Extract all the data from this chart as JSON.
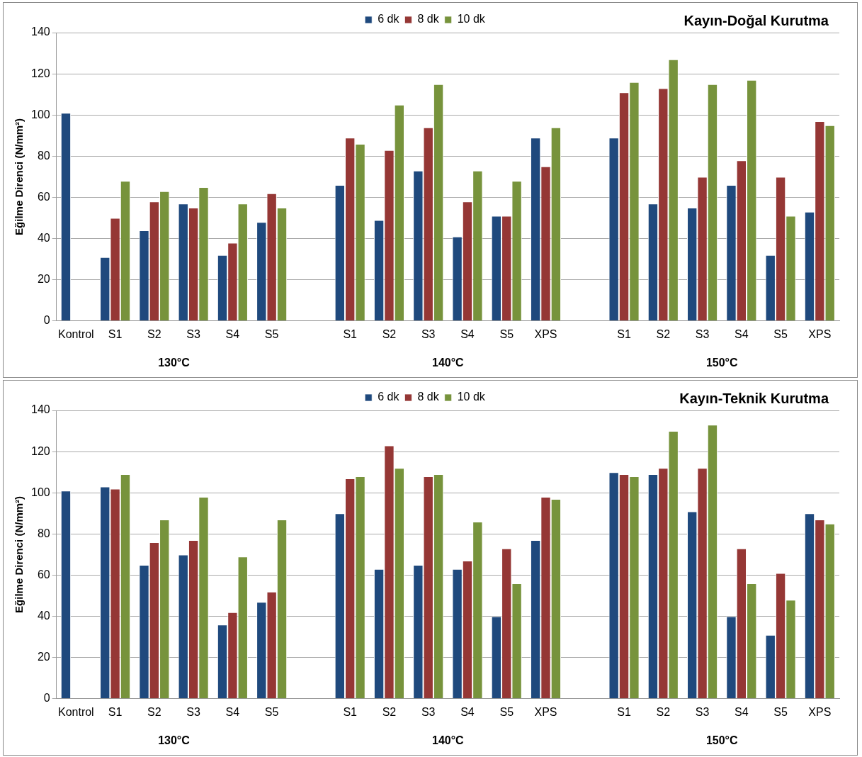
{
  "chart_data": [
    {
      "type": "bar",
      "title": "Kayın-Doğal Kurutma",
      "ylabel": "Eğilme Direnci (N/mm²)",
      "categories": [
        "Kontrol",
        "S1",
        "S2",
        "S3",
        "S4",
        "S5",
        null,
        "S1",
        "S2",
        "S3",
        "S4",
        "S5",
        "XPS",
        null,
        "S1",
        "S2",
        "S3",
        "S4",
        "S5",
        "XPS"
      ],
      "series": [
        {
          "name": "6 dk",
          "color": "#1f497d",
          "values": [
            101,
            31,
            44,
            57,
            32,
            48,
            null,
            66,
            49,
            73,
            41,
            51,
            89,
            null,
            89,
            57,
            55,
            66,
            32,
            53
          ]
        },
        {
          "name": "8 dk",
          "color": "#953735",
          "values": [
            null,
            50,
            58,
            55,
            38,
            62,
            null,
            89,
            83,
            94,
            58,
            51,
            75,
            null,
            111,
            113,
            70,
            78,
            70,
            97
          ]
        },
        {
          "name": "10 dk",
          "color": "#77933c",
          "values": [
            null,
            68,
            63,
            65,
            57,
            55,
            null,
            86,
            105,
            115,
            73,
            68,
            94,
            null,
            116,
            127,
            115,
            117,
            51,
            95
          ]
        }
      ],
      "ylim": [
        0,
        140
      ],
      "yticks": [
        0,
        20,
        40,
        60,
        80,
        100,
        120,
        140
      ],
      "grid": "y",
      "legend": "top",
      "annotations": [
        "130°C",
        "140°C",
        "150°C"
      ]
    },
    {
      "type": "bar",
      "title": "Kayın-Teknik Kurutma",
      "ylabel": "Eğilme Direnci (N/mm²)",
      "categories": [
        "Kontrol",
        "S1",
        "S2",
        "S3",
        "S4",
        "S5",
        null,
        "S1",
        "S2",
        "S3",
        "S4",
        "S5",
        "XPS",
        null,
        "S1",
        "S2",
        "S3",
        "S4",
        "S5",
        "XPS"
      ],
      "series": [
        {
          "name": "6 dk",
          "color": "#1f497d",
          "values": [
            101,
            103,
            65,
            70,
            36,
            47,
            null,
            90,
            63,
            65,
            63,
            40,
            77,
            null,
            110,
            109,
            91,
            40,
            31,
            90
          ]
        },
        {
          "name": "8 dk",
          "color": "#953735",
          "values": [
            null,
            102,
            76,
            77,
            42,
            52,
            null,
            107,
            123,
            108,
            67,
            73,
            98,
            null,
            109,
            112,
            112,
            73,
            61,
            87
          ]
        },
        {
          "name": "10 dk",
          "color": "#77933c",
          "values": [
            null,
            109,
            87,
            98,
            69,
            87,
            null,
            108,
            112,
            109,
            86,
            56,
            97,
            null,
            108,
            130,
            133,
            56,
            48,
            85
          ]
        }
      ],
      "ylim": [
        0,
        140
      ],
      "yticks": [
        0,
        20,
        40,
        60,
        80,
        100,
        120,
        140
      ],
      "grid": "y",
      "legend": "top",
      "annotations": [
        "130°C",
        "140°C",
        "150°C"
      ]
    }
  ]
}
